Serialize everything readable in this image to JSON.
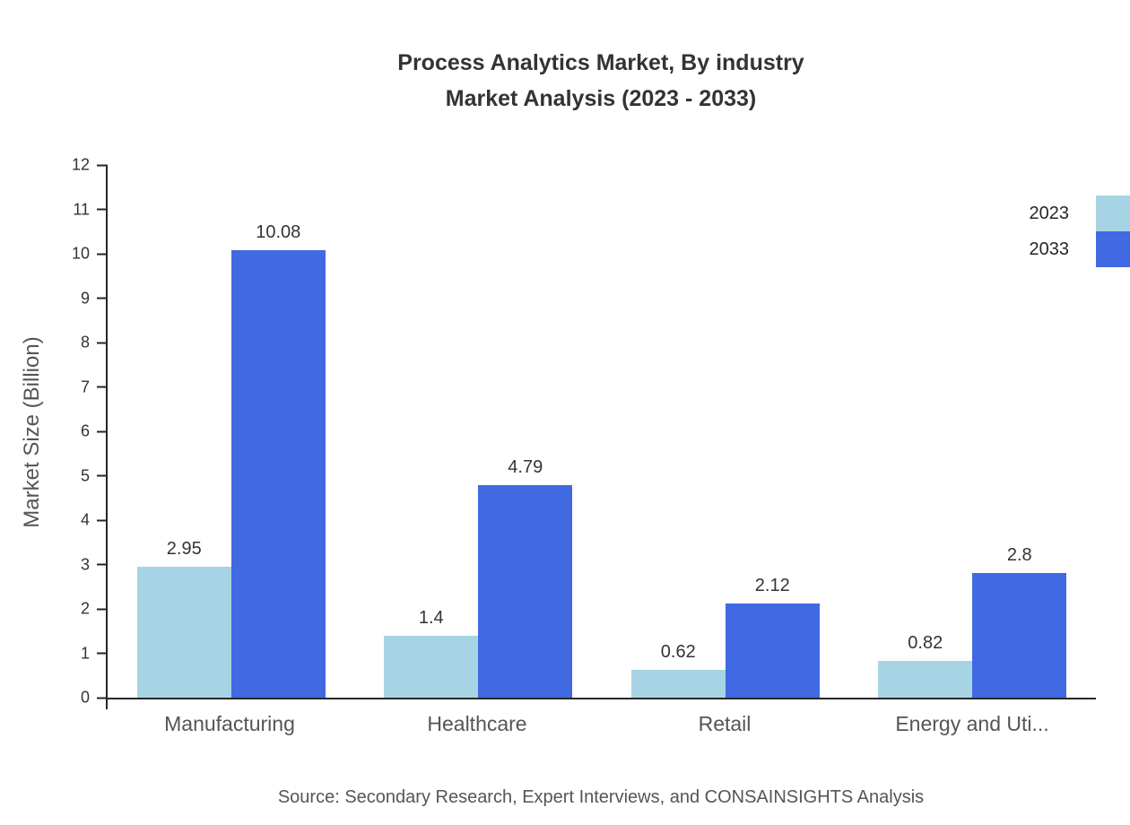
{
  "title": {
    "line1": "Process Analytics Market, By industry",
    "line2": "Market Analysis (2023 - 2033)"
  },
  "y_axis_title": "Market Size (Billion)",
  "source": "Source: Secondary Research, Expert Interviews, and CONSAINSIGHTS Analysis",
  "colors": {
    "series_2023": "#A6D4E4",
    "series_2033": "#4169E1",
    "axis": "#262626",
    "text": "#333333",
    "muted_text": "#555555"
  },
  "chart_data": {
    "type": "bar",
    "title": "Process Analytics Market, By industry Market Analysis (2023 - 2033)",
    "xlabel": "",
    "ylabel": "Market Size (Billion)",
    "categories": [
      "Manufacturing",
      "Healthcare",
      "Retail",
      "Energy and Uti..."
    ],
    "series": [
      {
        "name": "2023",
        "color": "#A6D4E4",
        "values": [
          2.95,
          1.4,
          0.62,
          0.82
        ]
      },
      {
        "name": "2033",
        "color": "#4169E1",
        "values": [
          10.08,
          4.79,
          2.12,
          2.8
        ]
      }
    ],
    "ylim": [
      0,
      12
    ],
    "ytick_step": 1,
    "grid": false,
    "legend_position": "top-right"
  }
}
